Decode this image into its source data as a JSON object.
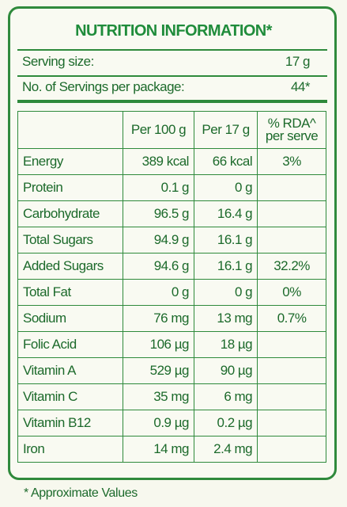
{
  "title": "NUTRITION INFORMATION*",
  "serving": [
    {
      "label": "Serving size:",
      "value": "17 g"
    },
    {
      "label": "No. of Servings per package:",
      "value": "44*"
    }
  ],
  "table": {
    "header": {
      "per100": "Per 100 g",
      "per17": "Per 17 g",
      "rda": [
        "% RDA^",
        "per serve"
      ]
    },
    "rows": [
      {
        "nutrient": "Energy",
        "per100": "389 kcal",
        "per17": "66 kcal",
        "rda": "3%"
      },
      {
        "nutrient": "Protein",
        "per100": "0.1 g",
        "per17": "0 g"
      },
      {
        "nutrient": "Carbohydrate",
        "per100": "96.5 g",
        "per17": "16.4 g"
      },
      {
        "nutrient": "Total Sugars",
        "per100": "94.9 g",
        "per17": "16.1 g"
      },
      {
        "nutrient": "Added Sugars",
        "per100": "94.6 g",
        "per17": "16.1 g",
        "rda": "32.2%"
      },
      {
        "nutrient": "Total Fat",
        "per100": "0 g",
        "per17": "0 g",
        "rda": "0%"
      },
      {
        "nutrient": "Sodium",
        "per100": "76 mg",
        "per17": "13 mg",
        "rda": "0.7%"
      },
      {
        "nutrient": "Folic Acid",
        "per100": "106 µg",
        "per17": "18 µg"
      },
      {
        "nutrient": "Vitamin A",
        "per100": "529 µg",
        "per17": "90 µg"
      },
      {
        "nutrient": "Vitamin C",
        "per100": "35 mg",
        "per17": "6 mg"
      },
      {
        "nutrient": "Vitamin B12",
        "per100": "0.9 µg",
        "per17": "0.2 µg"
      },
      {
        "nutrient": "Iron",
        "per100": "14 mg",
        "per17": "2.4 mg"
      }
    ]
  },
  "footnote": "* Approximate Values"
}
